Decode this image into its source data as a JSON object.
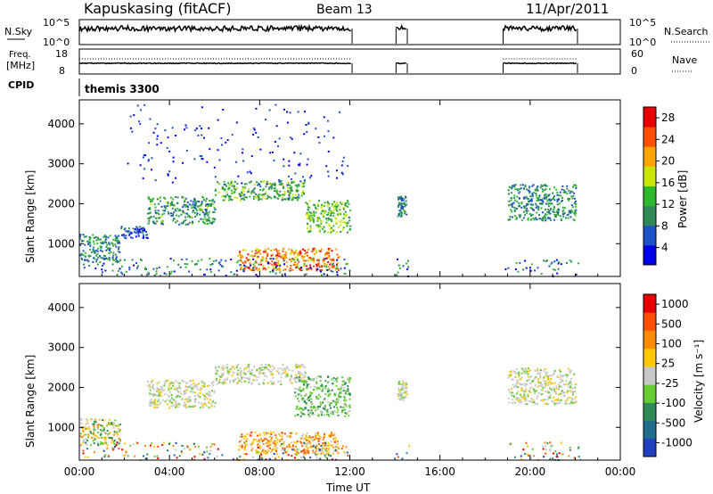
{
  "header": {
    "station": "Kapuskasing (fitACF)",
    "beam": "Beam 13",
    "date": "11/Apr/2011"
  },
  "panels": {
    "nsky_label": "N.Sky",
    "nsky_ticks": [
      "10^5",
      "10^0"
    ],
    "nsearch_label": "N.Search",
    "nsearch_ticks": [
      "10^5",
      "10^0"
    ],
    "freq_label_line1": "Freq.",
    "freq_label_line2": "[MHz]",
    "freq_ticks": [
      "18",
      "8"
    ],
    "nave_label": "Nave",
    "nave_ticks": [
      "60",
      "0"
    ],
    "cpid_label": "CPID",
    "cpid_value": "themis 3300"
  },
  "chart_data": [
    {
      "type": "heatmap",
      "name": "power",
      "ylabel": "Slant Range [km]",
      "yticks": [
        1000,
        2000,
        3000,
        4000
      ],
      "ylim": [
        180,
        4600
      ],
      "xlim_hours": [
        0,
        24
      ],
      "colorbar_label": "Power [dB]",
      "colorbar_ticks": [
        "28",
        "24",
        "20",
        "16",
        "12",
        "8",
        "4"
      ],
      "colors": [
        "#0000e6",
        "#1e50c8",
        "#2e8b57",
        "#2eb82e",
        "#c8e600",
        "#ffa500",
        "#ff5000",
        "#e60000"
      ],
      "echo_regions": [
        {
          "t": [
            0.0,
            1.8
          ],
          "r": [
            560,
            1250
          ],
          "level": 0.3
        },
        {
          "t": [
            1.8,
            3.0
          ],
          "r": [
            1150,
            1450
          ],
          "level": 0.2
        },
        {
          "t": [
            3.0,
            6.0
          ],
          "r": [
            1500,
            2200
          ],
          "level": 0.35
        },
        {
          "t": [
            6.0,
            10.0
          ],
          "r": [
            2100,
            2600
          ],
          "level": 0.4
        },
        {
          "t": [
            10.0,
            12.0
          ],
          "r": [
            1300,
            2100
          ],
          "level": 0.45
        },
        {
          "t": [
            7.0,
            11.5
          ],
          "r": [
            350,
            900
          ],
          "level": 0.75
        },
        {
          "t": [
            14.1,
            14.5
          ],
          "r": [
            1700,
            2200
          ],
          "level": 0.3
        },
        {
          "t": [
            19.0,
            22.0
          ],
          "r": [
            1600,
            2500
          ],
          "level": 0.3
        }
      ]
    },
    {
      "type": "heatmap",
      "name": "velocity",
      "ylabel": "Slant Range [km]",
      "yticks": [
        1000,
        2000,
        3000,
        4000
      ],
      "ylim": [
        180,
        4600
      ],
      "xlim_hours": [
        0,
        24
      ],
      "xticks": [
        "00:00",
        "04:00",
        "08:00",
        "12:00",
        "16:00",
        "20:00",
        "00:00"
      ],
      "xlabel": "Time UT",
      "colorbar_label": "Velocity [m s⁻¹]",
      "colorbar_ticks": [
        "1000",
        "500",
        "100",
        "25",
        "-25",
        "-100",
        "-500",
        "-1000"
      ],
      "colors": [
        "#2040c0",
        "#1e6e8c",
        "#2e8b57",
        "#66cc33",
        "#c8c8c8",
        "#ffc800",
        "#ff8c00",
        "#ff5000",
        "#e60000"
      ],
      "echo_regions": [
        {
          "t": [
            0.0,
            1.8
          ],
          "r": [
            560,
            1250
          ],
          "class": "mixed"
        },
        {
          "t": [
            3.0,
            6.0
          ],
          "r": [
            1500,
            2200
          ],
          "class": "ground"
        },
        {
          "t": [
            6.0,
            10.0
          ],
          "r": [
            2100,
            2600
          ],
          "class": "ground"
        },
        {
          "t": [
            9.5,
            12.0
          ],
          "r": [
            1300,
            2300
          ],
          "class": "green"
        },
        {
          "t": [
            7.0,
            11.5
          ],
          "r": [
            350,
            900
          ],
          "class": "orange"
        },
        {
          "t": [
            14.1,
            14.5
          ],
          "r": [
            1700,
            2200
          ],
          "class": "ground"
        },
        {
          "t": [
            19.0,
            22.0
          ],
          "r": [
            1600,
            2500
          ],
          "class": "ground"
        }
      ]
    }
  ]
}
